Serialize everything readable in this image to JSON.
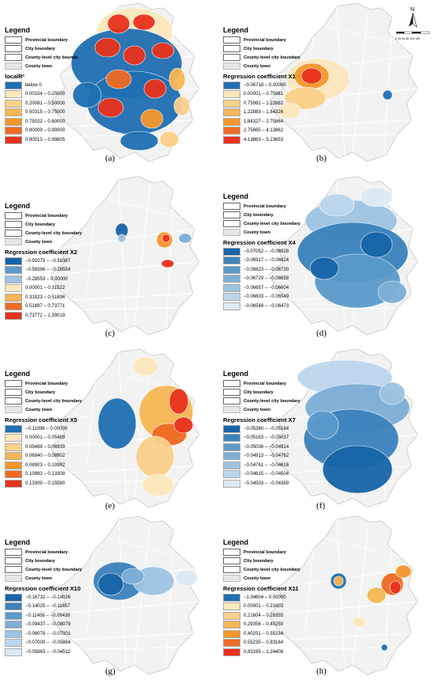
{
  "legend": {
    "title": "Legend",
    "boundaries": [
      {
        "label": "Provincial boundary",
        "icon": "provincial-boundary-swatch"
      },
      {
        "label": "City boundary",
        "icon": "city-boundary-swatch"
      },
      {
        "label": "County-level city boundary",
        "icon": "county-level-boundary-swatch"
      },
      {
        "label": "County town",
        "icon": "county-town-swatch"
      }
    ],
    "boundaries_a_county_label": "County-level city bounda"
  },
  "north_arrow": {
    "letter": "N",
    "scale_ticks": "0 20 40   80   120  160"
  },
  "palettes": {
    "blue_warm": [
      "#1f6fb2",
      "#fde8bd",
      "#fbd089",
      "#f7b654",
      "#f5962b",
      "#ef6a22",
      "#e8321d"
    ],
    "pos_warm": [
      "#fde8bd",
      "#fbd089",
      "#f7b654",
      "#f5962b",
      "#ef6a22",
      "#e8321d"
    ],
    "blues": [
      "#1765a8",
      "#3b82bd",
      "#5b9acb",
      "#7daed6",
      "#9dc3e2",
      "#bdd6ec",
      "#dceaf5"
    ],
    "gray_fill": "#f2f2f2",
    "gray_edge": "#cfcfcf"
  },
  "panels": [
    {
      "label": "(a)",
      "variable": "localR²",
      "classes": [
        "below 0",
        "0.00154 – 0.20000",
        "0.20081 – 0.50000",
        "0.50315 – 0.75000",
        "0.75022 – 0.80000",
        "0.80009 – 0.90000",
        "0.90013 – 0.99805"
      ]
    },
    {
      "label": "(b)",
      "variable": "Regression coefficient X1",
      "classes": [
        "−0.06718 – 0.00000",
        "0.00001 – 0.75981",
        "0.75982 – 1.22882",
        "1.22883 – 1.84326",
        "1.84327 – 2.75864",
        "2.75865 – 4.13862",
        "4.13863 – 5.23653"
      ]
    },
    {
      "label": "(c)",
      "variable": "Regression coefficient X2",
      "classes": [
        "−0.91075 – −0.58387",
        "−0.58386 – −0.28554",
        "−0.28553 – 0.00000",
        "0.00001 – 0.31522",
        "0.31523 – 0.51896",
        "0.51897 – 0.73771",
        "0.73772 – 1.39019"
      ]
    },
    {
      "label": "(d)",
      "variable": "Regression coefficient X4",
      "classes": [
        "−0.07052 – −0.06928",
        "−0.06917 – −0.06824",
        "−0.06823 – −0.06730",
        "−0.06729 – −0.06658",
        "−0.06657 – −0.06604",
        "−0.06603 – −0.06549",
        "−0.06548 – −0.06473"
      ]
    },
    {
      "label": "(e)",
      "variable": "Regression coefficient X5",
      "classes": [
        "−0.11096 – 0.00000",
        "0.00001 – 0.05489",
        "0.05488 – 0.06939",
        "0.06940 – 0.08902",
        "0.08903 – 0.10982",
        "0.10983 – 0.13308",
        "0.13309 – 0.15580"
      ]
    },
    {
      "label": "(f)",
      "variable": "Regression coefficient X7",
      "classes": [
        "−0.05380 – −0.05164",
        "−0.05163 – −0.05037",
        "−0.05036 – −0.04914",
        "−0.04913 – −0.04762",
        "−0.04761 – −0.04616",
        "−0.04615 – −0.04504",
        "−0.04503 – −0.04389"
      ]
    },
    {
      "label": "(g)",
      "variable": "Regression coefficient X10",
      "classes": [
        "−0.16732 – −0.14026",
        "−0.14025 – −0.11457",
        "−0.11456 – −0.09438",
        "−0.09437 – −0.08079",
        "−0.08078 – −0.07001",
        "−0.07000 – −0.05864",
        "−0.05863 – −0.04512"
      ]
    },
    {
      "label": "(h)",
      "variable": "Regression coefficient X11",
      "classes": [
        "−1.04604 – 0.00000",
        "0.00001 – 0.21603",
        "0.21604 – 0.29355",
        "0.29356 – 0.40250",
        "0.40251 – 0.55234",
        "0.55235 – 0.83164",
        "0.83165 – 1.24408"
      ]
    }
  ]
}
